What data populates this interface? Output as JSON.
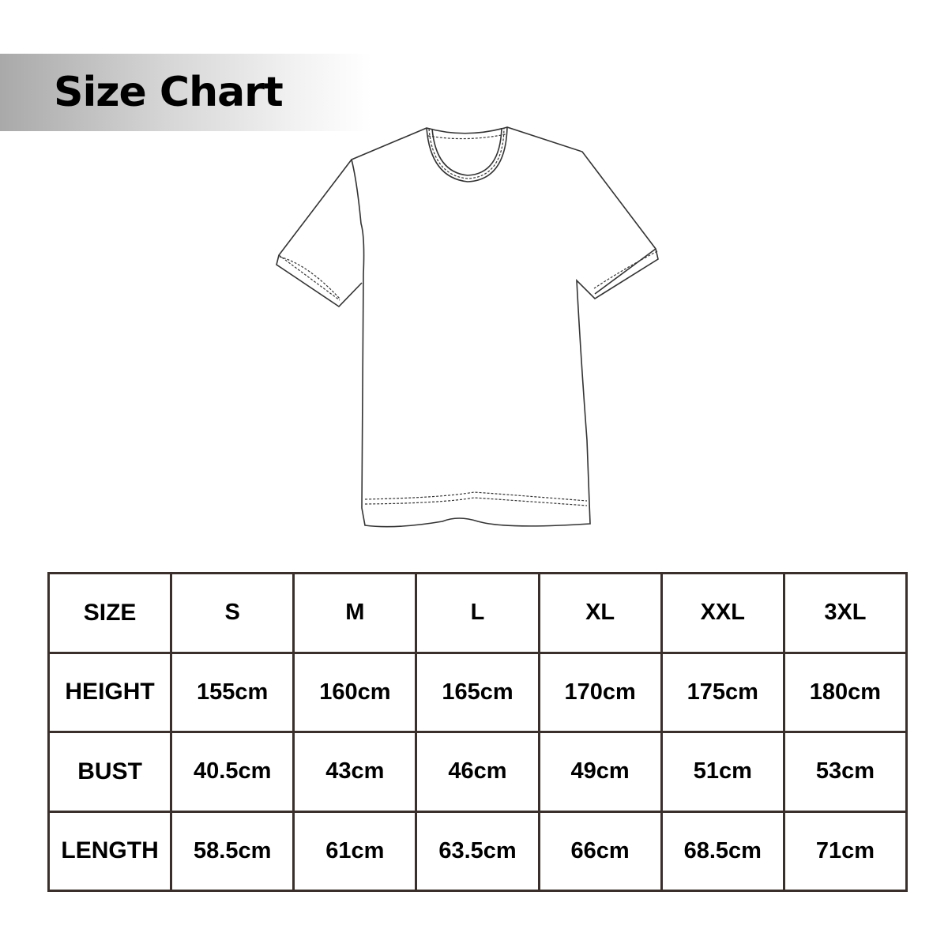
{
  "title": "Size Chart",
  "table": {
    "header": [
      "SIZE",
      "S",
      "M",
      "L",
      "XL",
      "XXL",
      "3XL"
    ],
    "rows": [
      [
        "HEIGHT",
        "155cm",
        "160cm",
        "165cm",
        "170cm",
        "175cm",
        "180cm"
      ],
      [
        "BUST",
        "40.5cm",
        "43cm",
        "46cm",
        "49cm",
        "51cm",
        "53cm"
      ],
      [
        "LENGTH",
        "58.5cm",
        "61cm",
        "63.5cm",
        "66cm",
        "68.5cm",
        "71cm"
      ]
    ]
  },
  "colors": {
    "border": "#3a2f2b",
    "text": "#000000"
  },
  "illustration": "t-shirt-outline"
}
